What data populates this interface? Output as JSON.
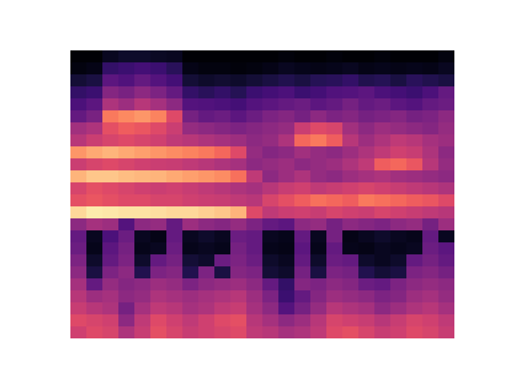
{
  "chart_data": {
    "type": "heatmap",
    "color": "magma",
    "tick_labels": false,
    "clim": [
      0,
      100
    ],
    "cells": [
      [
        1,
        1,
        6,
        8,
        8,
        7,
        6,
        1,
        1,
        1,
        1,
        1,
        1,
        2,
        1,
        1,
        2,
        1,
        1,
        2,
        1,
        1,
        1,
        3
      ],
      [
        3,
        4,
        18,
        20,
        22,
        20,
        16,
        4,
        3,
        3,
        2,
        3,
        4,
        6,
        5,
        4,
        5,
        6,
        4,
        5,
        4,
        5,
        4,
        6
      ],
      [
        10,
        12,
        28,
        25,
        30,
        26,
        22,
        10,
        8,
        9,
        8,
        10,
        12,
        14,
        12,
        15,
        16,
        18,
        14,
        15,
        12,
        16,
        14,
        12
      ],
      [
        18,
        20,
        38,
        35,
        40,
        36,
        30,
        18,
        16,
        18,
        15,
        20,
        22,
        24,
        20,
        22,
        25,
        26,
        28,
        24,
        22,
        20,
        24,
        30
      ],
      [
        24,
        28,
        48,
        44,
        50,
        46,
        40,
        26,
        25,
        24,
        22,
        26,
        28,
        30,
        32,
        28,
        30,
        34,
        30,
        32,
        28,
        26,
        30,
        32
      ],
      [
        30,
        35,
        72,
        75,
        78,
        74,
        60,
        34,
        30,
        32,
        28,
        32,
        36,
        38,
        34,
        40,
        36,
        38,
        34,
        36,
        38,
        34,
        36,
        40
      ],
      [
        45,
        48,
        62,
        66,
        64,
        60,
        55,
        42,
        40,
        38,
        36,
        38,
        40,
        42,
        55,
        60,
        58,
        45,
        40,
        44,
        42,
        40,
        38,
        42
      ],
      [
        50,
        55,
        58,
        60,
        58,
        56,
        52,
        50,
        48,
        46,
        44,
        40,
        42,
        48,
        68,
        72,
        66,
        50,
        44,
        48,
        52,
        50,
        46,
        44
      ],
      [
        78,
        82,
        84,
        82,
        80,
        78,
        76,
        74,
        72,
        68,
        60,
        42,
        38,
        40,
        45,
        42,
        40,
        44,
        48,
        52,
        56,
        54,
        48,
        40
      ],
      [
        55,
        58,
        60,
        58,
        56,
        55,
        54,
        52,
        50,
        48,
        46,
        40,
        42,
        44,
        40,
        42,
        44,
        48,
        52,
        66,
        68,
        64,
        50,
        42
      ],
      [
        84,
        88,
        88,
        86,
        85,
        84,
        82,
        80,
        78,
        76,
        70,
        52,
        40,
        44,
        48,
        42,
        40,
        44,
        46,
        48,
        45,
        44,
        42,
        40
      ],
      [
        58,
        62,
        60,
        58,
        56,
        55,
        56,
        54,
        52,
        50,
        48,
        46,
        50,
        54,
        56,
        52,
        54,
        56,
        58,
        56,
        54,
        52,
        50,
        48
      ],
      [
        62,
        64,
        62,
        60,
        60,
        58,
        58,
        56,
        55,
        54,
        52,
        50,
        58,
        62,
        66,
        70,
        68,
        66,
        72,
        70,
        68,
        66,
        64,
        60
      ],
      [
        92,
        96,
        95,
        94,
        94,
        93,
        92,
        92,
        90,
        88,
        84,
        60,
        52,
        55,
        56,
        54,
        58,
        56,
        55,
        58,
        56,
        54,
        52,
        50
      ],
      [
        40,
        46,
        44,
        26,
        40,
        42,
        30,
        44,
        40,
        38,
        42,
        36,
        30,
        28,
        40,
        42,
        34,
        40,
        38,
        36,
        40,
        42,
        34,
        44
      ],
      [
        30,
        6,
        24,
        32,
        6,
        4,
        30,
        6,
        8,
        6,
        32,
        30,
        6,
        5,
        30,
        6,
        34,
        4,
        6,
        8,
        6,
        5,
        30,
        6
      ],
      [
        32,
        5,
        28,
        34,
        5,
        6,
        32,
        5,
        6,
        5,
        34,
        30,
        5,
        4,
        28,
        5,
        30,
        5,
        4,
        6,
        5,
        6,
        32,
        28
      ],
      [
        36,
        8,
        30,
        36,
        8,
        30,
        34,
        10,
        8,
        32,
        36,
        32,
        8,
        6,
        30,
        8,
        32,
        30,
        8,
        6,
        8,
        30,
        34,
        30
      ],
      [
        40,
        12,
        36,
        40,
        14,
        36,
        38,
        14,
        36,
        12,
        38,
        36,
        10,
        8,
        34,
        12,
        36,
        34,
        14,
        10,
        12,
        36,
        38,
        34
      ],
      [
        46,
        30,
        42,
        38,
        40,
        44,
        42,
        36,
        40,
        42,
        44,
        40,
        30,
        18,
        38,
        36,
        40,
        38,
        32,
        30,
        36,
        40,
        42,
        40
      ],
      [
        50,
        44,
        46,
        40,
        42,
        48,
        46,
        44,
        46,
        48,
        50,
        44,
        36,
        20,
        30,
        38,
        44,
        42,
        40,
        36,
        38,
        44,
        46,
        42
      ],
      [
        54,
        50,
        48,
        34,
        46,
        52,
        50,
        46,
        48,
        52,
        54,
        46,
        40,
        26,
        34,
        42,
        50,
        48,
        46,
        40,
        44,
        48,
        50,
        46
      ],
      [
        60,
        58,
        56,
        40,
        52,
        60,
        56,
        52,
        56,
        60,
        62,
        50,
        46,
        40,
        44,
        50,
        58,
        56,
        54,
        50,
        54,
        58,
        56,
        52
      ],
      [
        56,
        60,
        58,
        48,
        54,
        62,
        58,
        54,
        56,
        58,
        60,
        52,
        50,
        46,
        48,
        52,
        60,
        62,
        58,
        54,
        56,
        60,
        58,
        54
      ]
    ]
  }
}
